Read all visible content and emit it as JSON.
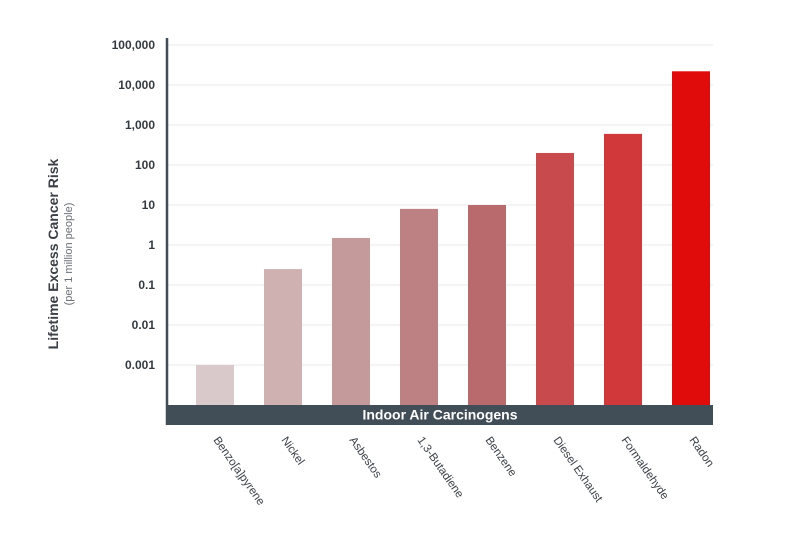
{
  "chart_data": {
    "type": "bar",
    "yscale": "log",
    "ylim": [
      0.0001,
      100000
    ],
    "grid": true,
    "ylabel": "Lifetime Excess Cancer Risk",
    "ylabel_sub": "(per 1 million people)",
    "xlabel": "Indoor Air Carcinogens",
    "yticks": [
      0.001,
      0.01,
      0.1,
      1,
      10,
      100,
      1000,
      10000,
      100000
    ],
    "ytick_labels": [
      "0.001",
      "0.01",
      "0.1",
      "1",
      "10",
      "100",
      "1,000",
      "10,000",
      "100,000"
    ],
    "categories": [
      "Benzo[a]pyrene",
      "Nickel",
      "Asbestos",
      "1,3-Butadiene",
      "Benzene",
      "Diesel Exhaust",
      "Formaldehyde",
      "Radon"
    ],
    "values": [
      0.001,
      0.25,
      1.5,
      8,
      10,
      200,
      600,
      22000
    ],
    "colors": [
      "#d9c9ca",
      "#cfb1b2",
      "#c49a9b",
      "#bd8183",
      "#b96a6d",
      "#c94a4c",
      "#d0383a",
      "#e00b0b"
    ],
    "axis_color": "#414d57",
    "grid_color": "#e8e8e8"
  }
}
